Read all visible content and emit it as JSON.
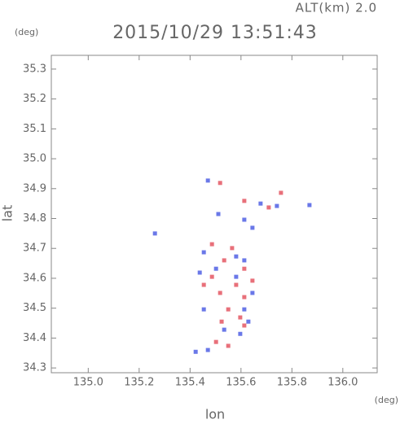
{
  "chart_data": {
    "type": "scatter",
    "title": "2015/10/29 13:51:43",
    "subtitle": "ALT(km) 2.0",
    "y_unit": "(deg)",
    "x_unit": "(deg)",
    "x_label": "lon",
    "y_label": "lat",
    "xlim": [
      134.855,
      136.135
    ],
    "ylim": [
      34.284,
      35.346
    ],
    "xticks": [
      {
        "value": 135.0,
        "label": "135.0"
      },
      135.2,
      135.4,
      135.6,
      135.8,
      {
        "value": 136.0,
        "label": "136.0"
      }
    ],
    "yticks": [
      34.3,
      34.4,
      34.5,
      34.6,
      34.7,
      34.8,
      34.9,
      {
        "value": 35.0,
        "label": "35.0"
      },
      35.1,
      35.2,
      35.3
    ],
    "series": [
      {
        "color": "#e8707a",
        "x": [
          135.518,
          135.757,
          135.613,
          135.709,
          135.486,
          135.565,
          135.534,
          135.613,
          135.486,
          135.581,
          135.518,
          135.613,
          135.55,
          135.597,
          135.502,
          135.55,
          135.613,
          135.454,
          135.645,
          135.524
        ],
        "y": [
          34.919,
          34.886,
          34.859,
          34.837,
          34.714,
          34.701,
          34.66,
          34.632,
          34.605,
          34.578,
          34.551,
          34.537,
          34.496,
          34.469,
          34.387,
          34.374,
          34.442,
          34.578,
          34.592,
          34.455
        ]
      },
      {
        "color": "#6a78e8",
        "x": [
          135.47,
          135.677,
          135.741,
          135.262,
          135.613,
          135.645,
          135.454,
          135.581,
          135.613,
          135.502,
          135.645,
          135.454,
          135.613,
          135.534,
          135.597,
          135.422,
          135.47,
          135.438,
          135.629,
          135.869,
          135.511,
          135.581
        ],
        "y": [
          34.927,
          34.85,
          34.842,
          34.75,
          34.796,
          34.769,
          34.687,
          34.673,
          34.66,
          34.632,
          34.551,
          34.496,
          34.496,
          34.428,
          34.414,
          34.354,
          34.36,
          34.619,
          34.455,
          34.845,
          34.815,
          34.605
        ]
      }
    ]
  }
}
